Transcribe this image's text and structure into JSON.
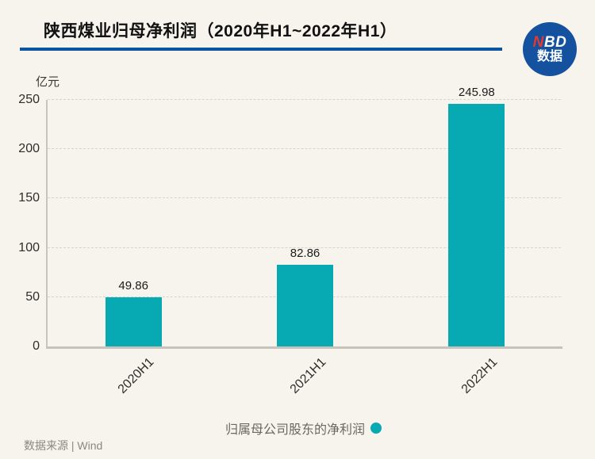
{
  "header": {
    "title": "陕西煤业归母净利润（2020年H1~2022年H1）",
    "logo": {
      "n_red": "N",
      "bd_white": "BD",
      "subtitle": "数据"
    }
  },
  "chart_data": {
    "type": "bar",
    "title": "陕西煤业归母净利润（2020年H1~2022年H1）",
    "categories": [
      "2020H1",
      "2021H1",
      "2022H1"
    ],
    "values": [
      49.86,
      82.86,
      245.98
    ],
    "value_labels": [
      "49.86",
      "82.86",
      "245.98"
    ],
    "series_name": "归属母公司股东的净利润",
    "ylabel": "亿元",
    "ylim": [
      0,
      250
    ],
    "yticks": [
      0,
      50,
      100,
      150,
      200,
      250
    ],
    "grid": "horizontal-dashed",
    "legend_position": "bottom-center",
    "bar_color": "#07a9b2"
  },
  "legend": {
    "label": "归属母公司股东的净利润",
    "marker_color": "#07a9b2"
  },
  "footer": {
    "source": "数据来源 | Wind"
  },
  "colors": {
    "background": "#f7f4ee",
    "accent_blue": "#0a56a3",
    "logo_blue": "#1452a0",
    "logo_red": "#e5392f",
    "bar_teal": "#07a9b2"
  }
}
